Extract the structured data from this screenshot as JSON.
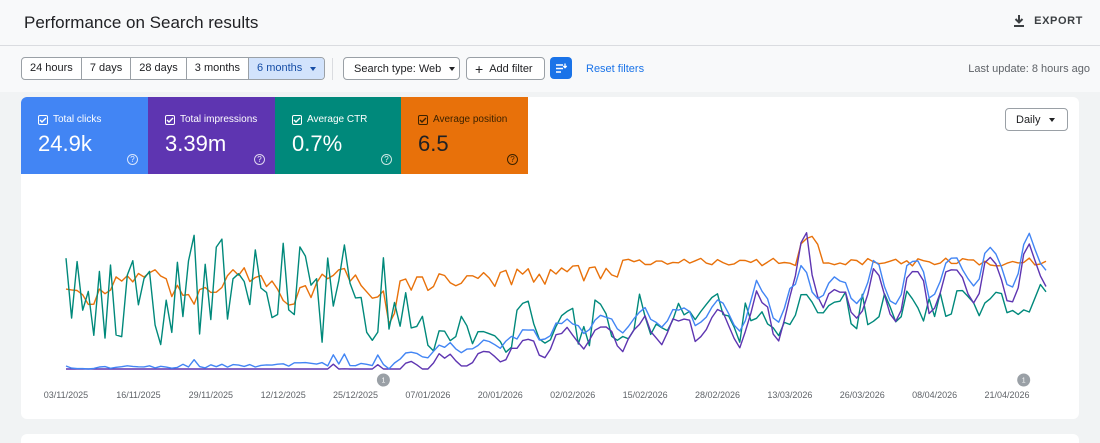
{
  "header": {
    "title": "Performance on Search results",
    "export_label": "EXPORT"
  },
  "toolbar": {
    "ranges": [
      {
        "label": "24 hours"
      },
      {
        "label": "7 days"
      },
      {
        "label": "28 days"
      },
      {
        "label": "3 months"
      },
      {
        "label": "6 months",
        "selected": true
      }
    ],
    "search_type": "Search type: Web",
    "add_filter": "Add filter",
    "reset_filters": "Reset filters",
    "last_update": "Last update: 8 hours ago"
  },
  "metrics": [
    {
      "label": "Total clicks",
      "value": "24.9k",
      "color": "#4285f4",
      "checked": true
    },
    {
      "label": "Total impressions",
      "value": "3.39m",
      "color": "#5e35b1",
      "checked": true
    },
    {
      "label": "Average CTR",
      "value": "0.7%",
      "color": "#00897b",
      "checked": true
    },
    {
      "label": "Average position",
      "value": "6.5",
      "color": "#e8710a",
      "checked": true
    }
  ],
  "granularity": "Daily",
  "chart_data": {
    "type": "line",
    "x_labels": [
      "03/11/2025",
      "16/11/2025",
      "29/11/2025",
      "12/12/2025",
      "25/12/2025",
      "07/01/2026",
      "20/01/2026",
      "02/02/2026",
      "15/02/2026",
      "28/02/2026",
      "13/03/2026",
      "26/03/2026",
      "08/04/2026",
      "21/04/2026"
    ],
    "annotations": [
      {
        "date": "30/12/2025",
        "label": "1"
      },
      {
        "date": "24/04/2026",
        "label": "1"
      }
    ],
    "series": [
      {
        "name": "Total clicks",
        "color": "#4285f4"
      },
      {
        "name": "Total impressions",
        "color": "#5e35b1"
      },
      {
        "name": "Average CTR",
        "color": "#00897b"
      },
      {
        "name": "Average position",
        "color": "#e8710a"
      }
    ]
  }
}
